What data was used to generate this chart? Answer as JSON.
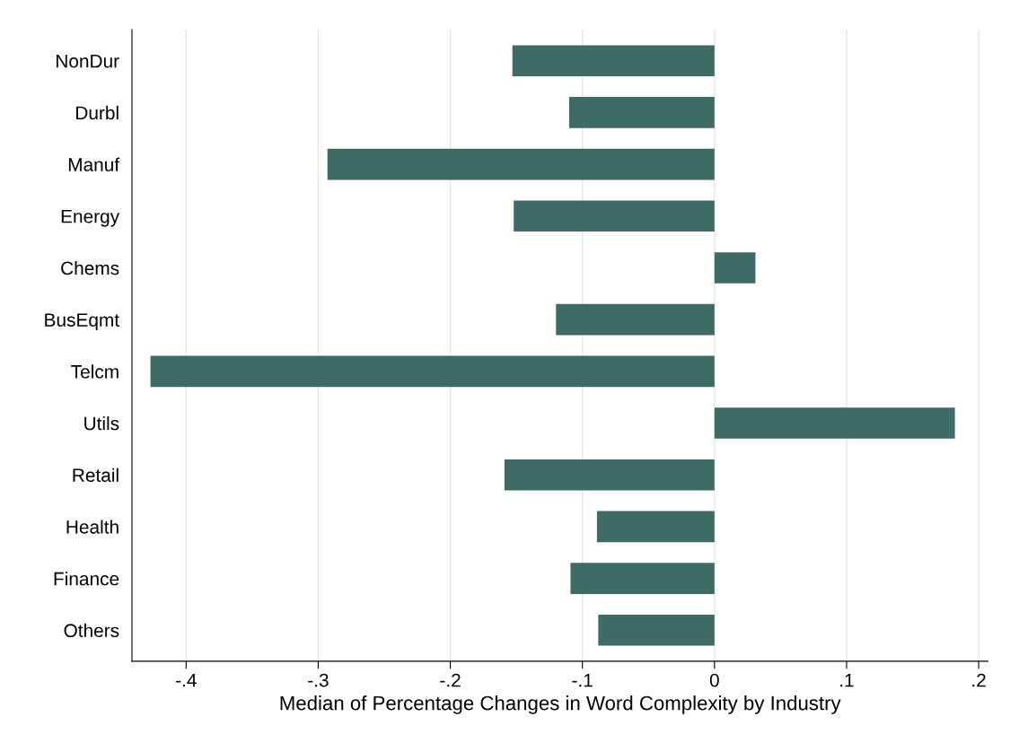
{
  "chart_data": {
    "type": "bar",
    "orientation": "horizontal",
    "xlabel": "Median of Percentage Changes in Word Complexity by Industry",
    "categories": [
      "NonDur",
      "Durbl",
      "Manuf",
      "Energy",
      "Chems",
      "BusEqmt",
      "Telcm",
      "Utils",
      "Retail",
      "Health",
      "Finance",
      "Others"
    ],
    "values": [
      -0.153,
      -0.11,
      -0.293,
      -0.152,
      0.031,
      -0.12,
      -0.427,
      0.182,
      -0.159,
      -0.089,
      -0.109,
      -0.088
    ],
    "color": "#3e6b66",
    "xlim": [
      -0.441,
      0.207
    ],
    "xticks": [
      {
        "value": -0.4,
        "label": "-.4"
      },
      {
        "value": -0.3,
        "label": "-.3"
      },
      {
        "value": -0.2,
        "label": "-.2"
      },
      {
        "value": -0.1,
        "label": "-.1"
      },
      0,
      {
        "value": 0.1,
        "label": ".1"
      },
      {
        "value": 0.2,
        "label": ".2"
      }
    ],
    "grid": "x",
    "legend": false
  }
}
